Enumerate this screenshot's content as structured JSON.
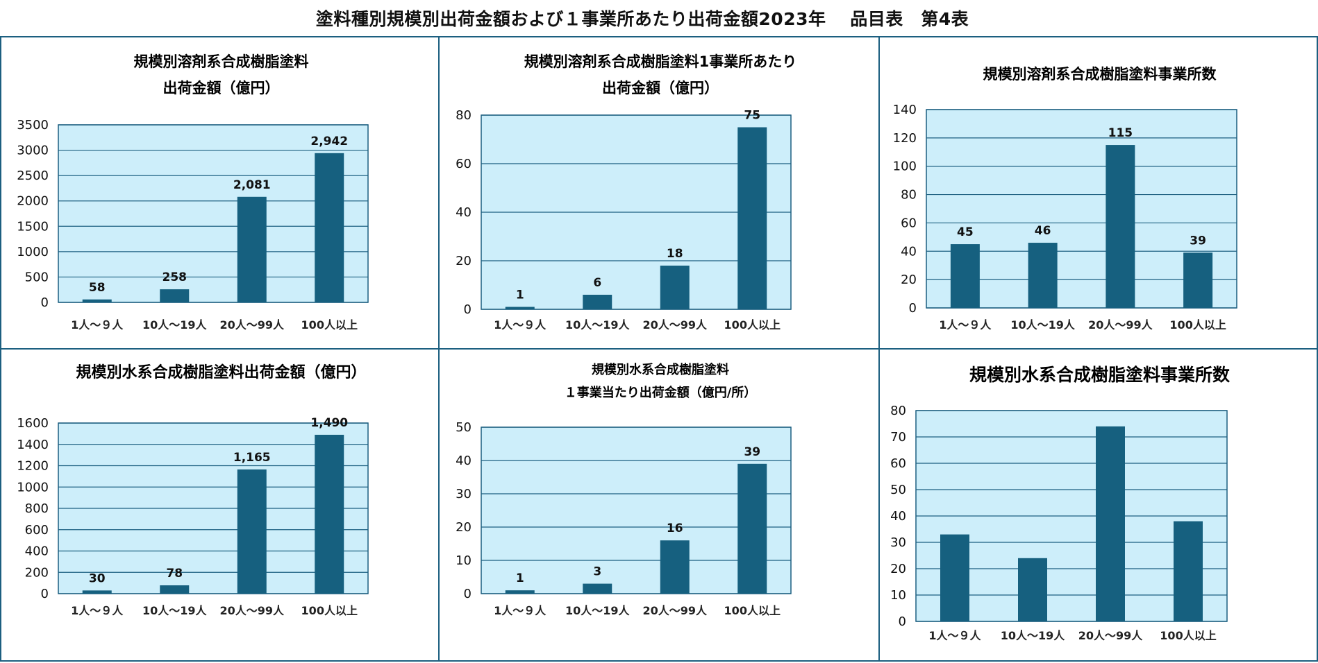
{
  "page_title": "塗料種別規模別出荷金額および１事業所あたり出荷金額2023年　 品目表　第4表",
  "colors": {
    "bar": "#16607f",
    "plot_background": "#cdeefa",
    "border": "#1c5f80"
  },
  "chart_data": [
    {
      "type": "bar",
      "title_lines": [
        "規模別溶剤系合成樹脂塗料",
        "出荷金額（億円）"
      ],
      "categories": [
        "1人～９人",
        "10人～19人",
        "20人～99人",
        "100人以上"
      ],
      "values": [
        58,
        258,
        2081,
        2942
      ],
      "data_labels": [
        "58",
        "258",
        "2,081",
        "2,942"
      ],
      "ylim": [
        0,
        3500
      ],
      "yticks": [
        "0",
        "500",
        "1000",
        "1500",
        "2000",
        "2500",
        "3000",
        "3500"
      ],
      "grid": true
    },
    {
      "type": "bar",
      "title_lines": [
        "規模別溶剤系合成樹脂塗料1事業所あたり",
        "出荷金額（億円）"
      ],
      "categories": [
        "1人～９人",
        "10人～19人",
        "20人～99人",
        "100人以上"
      ],
      "values": [
        1,
        6,
        18,
        75
      ],
      "data_labels": [
        "1",
        "6",
        "18",
        "75"
      ],
      "ylim": [
        0,
        80
      ],
      "yticks": [
        "0",
        "20",
        "40",
        "60",
        "80"
      ],
      "grid": true
    },
    {
      "type": "bar",
      "title_lines": [
        "規模別溶剤系合成樹脂塗料事業所数"
      ],
      "categories": [
        "1人～９人",
        "10人～19人",
        "20人～99人",
        "100人以上"
      ],
      "values": [
        45,
        46,
        115,
        39
      ],
      "data_labels": [
        "45",
        "46",
        "115",
        "39"
      ],
      "ylim": [
        0,
        140
      ],
      "yticks": [
        "0",
        "20",
        "40",
        "60",
        "80",
        "100",
        "120",
        "140"
      ],
      "grid": true
    },
    {
      "type": "bar",
      "title_lines": [
        "規模別水系合成樹脂塗料出荷金額（億円）"
      ],
      "categories": [
        "1人～９人",
        "10人～19人",
        "20人～99人",
        "100人以上"
      ],
      "values": [
        30,
        78,
        1165,
        1490
      ],
      "data_labels": [
        "30",
        "78",
        "1,165",
        "1,490"
      ],
      "ylim": [
        0,
        1600
      ],
      "yticks": [
        "0",
        "200",
        "400",
        "600",
        "800",
        "1000",
        "1200",
        "1400",
        "1600"
      ],
      "grid": true
    },
    {
      "type": "bar",
      "title_lines": [
        "規模別水系合成樹脂塗料",
        "１事業当たり出荷金額（億円/所）"
      ],
      "categories": [
        "1人～９人",
        "10人～19人",
        "20人～99人",
        "100人以上"
      ],
      "values": [
        1,
        3,
        16,
        39
      ],
      "data_labels": [
        "1",
        "3",
        "16",
        "39"
      ],
      "ylim": [
        0,
        50
      ],
      "yticks": [
        "0",
        "10",
        "20",
        "30",
        "40",
        "50"
      ],
      "grid": true
    },
    {
      "type": "bar",
      "title_lines": [
        "規模別水系合成樹脂塗料事業所数"
      ],
      "categories": [
        "1人～９人",
        "10人～19人",
        "20人～99人",
        "100人以上"
      ],
      "values": [
        33,
        24,
        74,
        38
      ],
      "data_labels": [],
      "ylim": [
        0,
        80
      ],
      "yticks": [
        "0",
        "10",
        "20",
        "30",
        "40",
        "50",
        "60",
        "70",
        "80"
      ],
      "grid": true
    }
  ]
}
